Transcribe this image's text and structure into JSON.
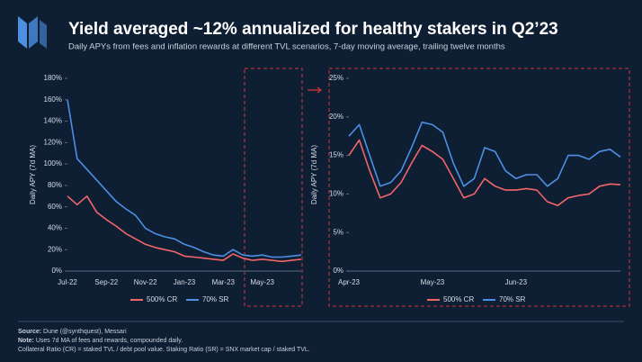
{
  "header": {
    "title": "Yield averaged ~12% annualized for healthy stakers in Q2’23",
    "subtitle": "Daily APYs from fees and inflation rewards at different TVL scenarios, 7-day moving average, trailing twelve months"
  },
  "chart_data": [
    {
      "type": "line",
      "y_label": "Daily APY (7d MA)",
      "categories": [
        "Jul-22",
        null,
        null,
        null,
        "Sep-22",
        null,
        null,
        null,
        "Nov-22",
        null,
        null,
        null,
        "Jan-23",
        null,
        null,
        null,
        "Mar-23",
        null,
        null,
        null,
        "May-23",
        null,
        null,
        null,
        null
      ],
      "series": [
        {
          "name": "500% CR",
          "color": "#f0666b",
          "values": [
            70,
            62,
            70,
            55,
            48,
            42,
            35,
            30,
            25,
            22,
            20,
            18,
            14,
            13,
            12,
            11,
            10,
            16,
            12,
            10,
            11,
            10,
            9,
            10,
            11
          ]
        },
        {
          "name": "70% SR",
          "color": "#4d8fe3",
          "values": [
            160,
            105,
            95,
            85,
            75,
            65,
            58,
            52,
            40,
            35,
            32,
            30,
            25,
            22,
            18,
            15,
            14,
            20,
            15,
            14,
            15,
            13,
            13,
            14,
            15
          ]
        }
      ],
      "ylim": [
        0,
        180
      ],
      "yticks": [
        {
          "value": 0,
          "label": "0%"
        },
        {
          "value": 20,
          "label": "20%"
        },
        {
          "value": 40,
          "label": "40%"
        },
        {
          "value": 60,
          "label": "60%"
        },
        {
          "value": 80,
          "label": "80%"
        },
        {
          "value": 100,
          "label": "100%"
        },
        {
          "value": 120,
          "label": "120%"
        },
        {
          "value": 140,
          "label": "140%"
        },
        {
          "value": 160,
          "label": "160%"
        },
        {
          "value": 180,
          "label": "180%"
        }
      ]
    },
    {
      "type": "line",
      "y_label": "Daily APY (7d MA)",
      "categories": [
        "Apr-23",
        null,
        null,
        null,
        null,
        null,
        null,
        null,
        "May-23",
        null,
        null,
        null,
        null,
        null,
        null,
        null,
        "Jun-23",
        null,
        null,
        null,
        null,
        null,
        null,
        null,
        null,
        null,
        null
      ],
      "series": [
        {
          "name": "500% CR",
          "color": "#f0666b",
          "values": [
            15,
            17,
            13,
            9.5,
            10,
            11.5,
            14,
            16.3,
            15.5,
            14.5,
            12,
            9.5,
            10,
            12,
            11,
            10.5,
            10.5,
            10.7,
            10.5,
            9,
            8.5,
            9.5,
            9.8,
            10,
            11,
            11.3,
            11.2
          ]
        },
        {
          "name": "70% SR",
          "color": "#4d8fe3",
          "values": [
            17.5,
            19,
            15,
            11,
            11.5,
            13,
            16,
            19.3,
            19,
            18,
            14,
            11,
            12,
            16,
            15.5,
            13,
            12,
            12.5,
            12.5,
            11,
            12,
            15,
            15,
            14.5,
            15.5,
            15.8,
            14.8
          ]
        }
      ],
      "ylim": [
        0,
        25
      ],
      "yticks": [
        {
          "value": 0,
          "label": "0%"
        },
        {
          "value": 5,
          "label": "5%"
        },
        {
          "value": 10,
          "label": "10%"
        },
        {
          "value": 15,
          "label": "15%"
        },
        {
          "value": 20,
          "label": "20%"
        },
        {
          "value": 25,
          "label": "25%"
        }
      ]
    }
  ],
  "footer": {
    "source_label": "Source:",
    "source": "Dune (@synthquest), Messari",
    "note_label": "Note:",
    "note": "Uses 7d MA of fees and rewards, compounded daily.",
    "note2": "Collateral Ratio (CR) = staked TVL / debt pool value. Staking Ratio (SR) = SNX market cap / staked TVL."
  }
}
